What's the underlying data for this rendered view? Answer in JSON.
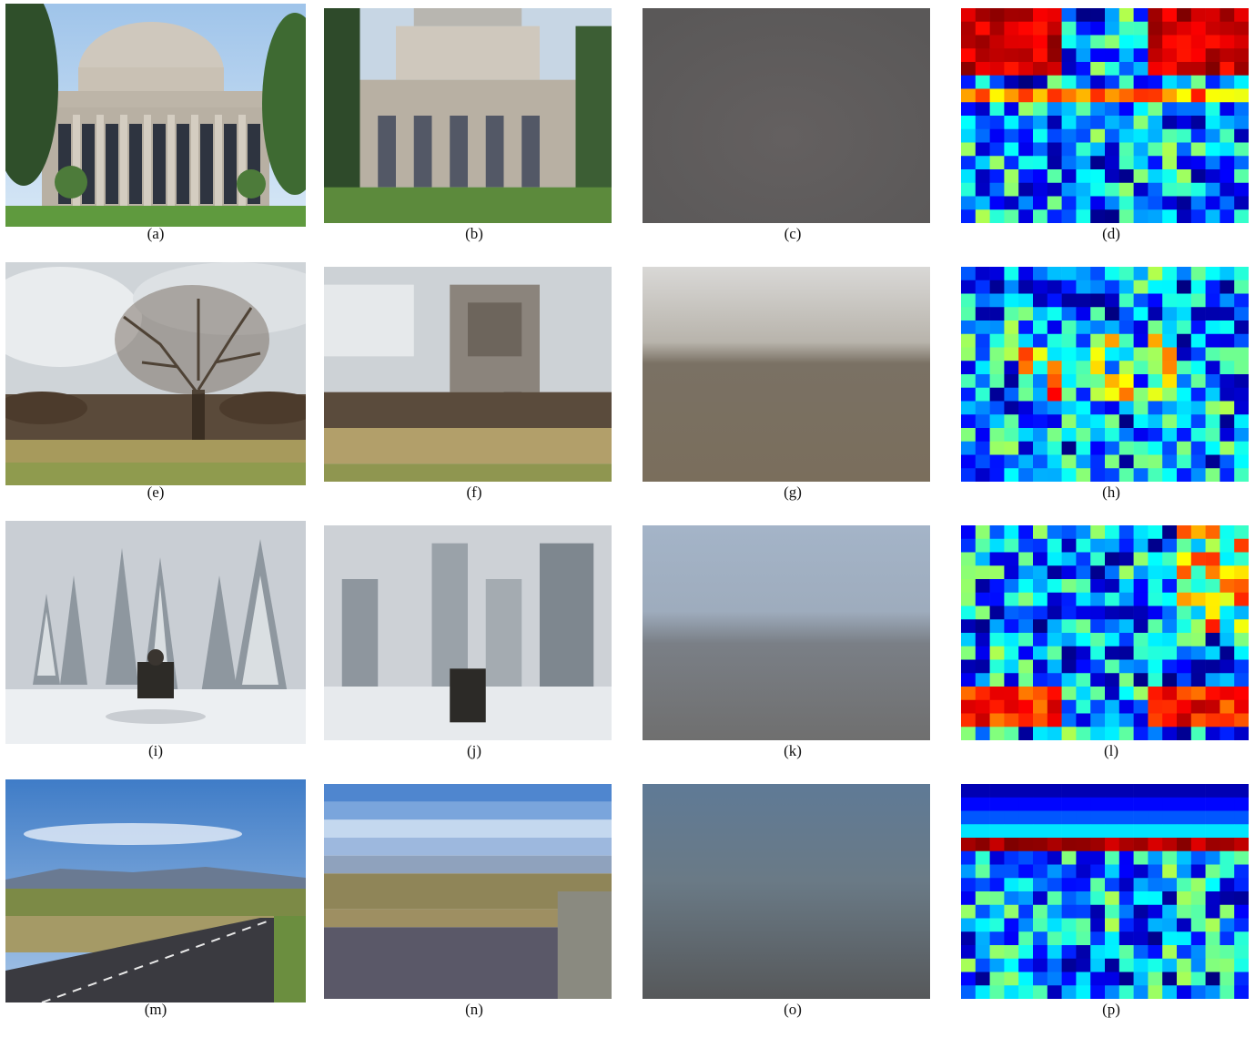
{
  "figure": {
    "rows": [
      {
        "row": 1,
        "panels": [
          {
            "label": "(a)",
            "kind": "photo",
            "scene": "dome-building"
          },
          {
            "label": "(b)",
            "kind": "pixelated",
            "scene": "dome-building"
          },
          {
            "label": "(c)",
            "kind": "blurred",
            "scene": "dome-building",
            "tone": "#5d5a59"
          },
          {
            "label": "(d)",
            "kind": "heatmap",
            "scene": "dome-building"
          }
        ]
      },
      {
        "row": 2,
        "panels": [
          {
            "label": "(e)",
            "kind": "photo",
            "scene": "tree-field"
          },
          {
            "label": "(f)",
            "kind": "pixelated",
            "scene": "tree-field"
          },
          {
            "label": "(g)",
            "kind": "blurred",
            "scene": "tree-field",
            "tone": "#7d7870"
          },
          {
            "label": "(h)",
            "kind": "heatmap",
            "scene": "tree-field"
          }
        ]
      },
      {
        "row": 3,
        "panels": [
          {
            "label": "(i)",
            "kind": "photo",
            "scene": "snow-forest"
          },
          {
            "label": "(j)",
            "kind": "pixelated",
            "scene": "snow-forest"
          },
          {
            "label": "(k)",
            "kind": "blurred",
            "scene": "snow-forest",
            "tone": "#7c8592"
          },
          {
            "label": "(l)",
            "kind": "heatmap",
            "scene": "snow-forest"
          }
        ]
      },
      {
        "row": 4,
        "panels": [
          {
            "label": "(m)",
            "kind": "photo",
            "scene": "road-landscape"
          },
          {
            "label": "(n)",
            "kind": "pixelated",
            "scene": "road-landscape"
          },
          {
            "label": "(o)",
            "kind": "blurred",
            "scene": "road-landscape",
            "tone": "#5f6a72"
          },
          {
            "label": "(p)",
            "kind": "heatmap",
            "scene": "road-landscape"
          }
        ]
      }
    ]
  }
}
